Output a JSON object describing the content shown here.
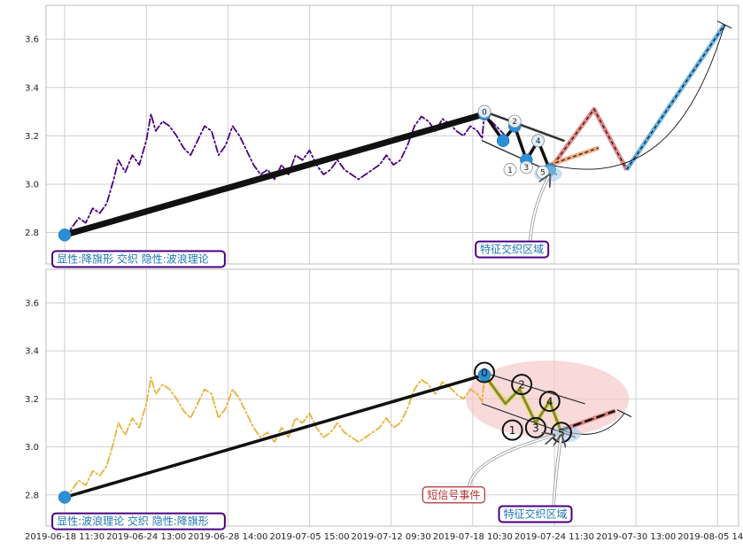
{
  "chart_data": [
    {
      "type": "line",
      "panel": "top",
      "y_ticks": [
        "2.8",
        "3.0",
        "3.2",
        "3.4",
        "3.6"
      ],
      "ylim": [
        2.67,
        3.74
      ],
      "grid": true,
      "series": [
        {
          "role": "price",
          "color": "#4b0082",
          "style": "dashdot",
          "points": [
            [
              0.0,
              2.78
            ],
            [
              0.3,
              2.82
            ],
            [
              0.6,
              2.86
            ],
            [
              0.9,
              2.84
            ],
            [
              1.2,
              2.9
            ],
            [
              1.5,
              2.88
            ],
            [
              1.8,
              2.92
            ],
            [
              2.1,
              3.02
            ],
            [
              2.3,
              3.1
            ],
            [
              2.6,
              3.05
            ],
            [
              2.9,
              3.12
            ],
            [
              3.2,
              3.08
            ],
            [
              3.5,
              3.18
            ],
            [
              3.7,
              3.29
            ],
            [
              3.9,
              3.22
            ],
            [
              4.2,
              3.26
            ],
            [
              4.5,
              3.24
            ],
            [
              4.8,
              3.2
            ],
            [
              5.1,
              3.15
            ],
            [
              5.4,
              3.12
            ],
            [
              5.7,
              3.18
            ],
            [
              6.0,
              3.24
            ],
            [
              6.3,
              3.22
            ],
            [
              6.6,
              3.12
            ],
            [
              6.9,
              3.16
            ],
            [
              7.2,
              3.24
            ],
            [
              7.5,
              3.2
            ],
            [
              7.8,
              3.14
            ],
            [
              8.1,
              3.08
            ],
            [
              8.4,
              3.04
            ],
            [
              8.7,
              3.06
            ],
            [
              9.0,
              3.02
            ],
            [
              9.3,
              3.08
            ],
            [
              9.6,
              3.04
            ],
            [
              9.9,
              3.12
            ],
            [
              10.2,
              3.1
            ],
            [
              10.5,
              3.14
            ],
            [
              10.8,
              3.08
            ],
            [
              11.1,
              3.04
            ],
            [
              11.4,
              3.06
            ],
            [
              11.7,
              3.1
            ],
            [
              12.0,
              3.06
            ],
            [
              12.3,
              3.04
            ],
            [
              12.6,
              3.02
            ],
            [
              12.9,
              3.04
            ],
            [
              13.2,
              3.06
            ],
            [
              13.5,
              3.08
            ],
            [
              13.8,
              3.12
            ],
            [
              14.1,
              3.08
            ],
            [
              14.4,
              3.1
            ],
            [
              14.7,
              3.16
            ],
            [
              15.0,
              3.24
            ],
            [
              15.3,
              3.28
            ],
            [
              15.6,
              3.26
            ],
            [
              15.9,
              3.22
            ],
            [
              16.2,
              3.27
            ],
            [
              16.5,
              3.25
            ],
            [
              16.8,
              3.22
            ],
            [
              17.1,
              3.2
            ],
            [
              17.4,
              3.24
            ],
            [
              17.7,
              3.22
            ],
            [
              17.9,
              3.19
            ],
            [
              18.0,
              3.29
            ],
            [
              18.3,
              3.26
            ],
            [
              18.6,
              3.23
            ],
            [
              18.9,
              3.2
            ]
          ]
        },
        {
          "role": "flag-pole",
          "color": "#111111",
          "width": 7,
          "points": [
            [
              0.0,
              2.79
            ],
            [
              18.0,
              3.29
            ]
          ]
        },
        {
          "role": "wave",
          "color": "#111111",
          "width": 3.5,
          "points": [
            [
              18.0,
              3.29
            ],
            [
              18.8,
              3.18
            ],
            [
              19.3,
              3.24
            ],
            [
              19.8,
              3.1
            ],
            [
              20.3,
              3.18
            ],
            [
              20.8,
              3.06
            ]
          ]
        },
        {
          "role": "flag-channel-upper",
          "color": "#333333",
          "width": 2.5,
          "points": [
            [
              18.3,
              3.29
            ],
            [
              21.4,
              3.18
            ]
          ]
        },
        {
          "role": "flag-channel-lower",
          "color": "#333333",
          "width": 1.5,
          "points": [
            [
              17.9,
              3.18
            ],
            [
              21.1,
              3.04
            ]
          ]
        },
        {
          "role": "projection-red",
          "color": "#e07a7a",
          "points": [
            [
              20.8,
              3.06
            ],
            [
              22.7,
              3.31
            ],
            [
              24.1,
              3.06
            ]
          ]
        },
        {
          "role": "projection-orange",
          "color": "#f0a070",
          "points": [
            [
              20.8,
              3.08
            ],
            [
              22.9,
              3.15
            ]
          ]
        },
        {
          "role": "projection-blue",
          "color": "#5aa8e0",
          "points": [
            [
              24.1,
              3.06
            ],
            [
              28.3,
              3.66
            ]
          ]
        },
        {
          "role": "arc",
          "color": "#111111",
          "points": [
            [
              20.8,
              3.08
            ],
            [
              24.5,
              3.0
            ],
            [
              26.8,
              3.18
            ],
            [
              28.3,
              3.66
            ]
          ]
        }
      ],
      "markers": [
        {
          "x": 0.0,
          "y": 2.79
        },
        {
          "x": 18.0,
          "y": 3.29
        },
        {
          "x": 18.8,
          "y": 3.18
        },
        {
          "x": 19.3,
          "y": 3.24
        },
        {
          "x": 19.8,
          "y": 3.1
        },
        {
          "x": 20.3,
          "y": 3.18
        },
        {
          "x": 20.8,
          "y": 3.06
        }
      ],
      "wave_labels": [
        {
          "text": "0",
          "x": 18.0,
          "y": 3.3
        },
        {
          "text": "1",
          "x": 19.1,
          "y": 3.06
        },
        {
          "text": "2",
          "x": 19.3,
          "y": 3.26
        },
        {
          "text": "3",
          "x": 19.8,
          "y": 3.07
        },
        {
          "text": "4",
          "x": 20.3,
          "y": 3.18
        },
        {
          "text": "5",
          "x": 20.5,
          "y": 3.05
        }
      ],
      "annotations": [
        {
          "text": "显性:降旗形 交织 隐性:波浪理论",
          "anchor_x": 0.0,
          "anchor_y": 2.69,
          "style": "purple-box"
        },
        {
          "text": "特征交织区域",
          "anchor_x": 18.5,
          "anchor_y": 2.73,
          "target_x": 20.8,
          "target_y": 3.06,
          "style": "purple-box"
        }
      ]
    },
    {
      "type": "line",
      "panel": "bottom",
      "y_ticks": [
        "2.8",
        "3.0",
        "3.2",
        "3.4",
        "3.6"
      ],
      "ylim": [
        2.67,
        3.74
      ],
      "x_tick_labels": [
        "2019-06-18 11:30",
        "2019-06-24 13:00",
        "2019-06-28 14:00",
        "2019-07-05 15:00",
        "2019-07-12 09:30",
        "2019-07-18 10:30",
        "2019-07-24 11:30",
        "2019-07-30 13:00",
        "2019-08-05 14:00"
      ],
      "grid": true,
      "series": [
        {
          "role": "price",
          "color": "#e8b23a",
          "style": "dashdot",
          "points": [
            [
              0.0,
              2.78
            ],
            [
              0.3,
              2.82
            ],
            [
              0.6,
              2.86
            ],
            [
              0.9,
              2.84
            ],
            [
              1.2,
              2.9
            ],
            [
              1.5,
              2.88
            ],
            [
              1.8,
              2.92
            ],
            [
              2.1,
              3.02
            ],
            [
              2.3,
              3.1
            ],
            [
              2.6,
              3.05
            ],
            [
              2.9,
              3.12
            ],
            [
              3.2,
              3.08
            ],
            [
              3.5,
              3.18
            ],
            [
              3.7,
              3.29
            ],
            [
              3.9,
              3.22
            ],
            [
              4.2,
              3.26
            ],
            [
              4.5,
              3.24
            ],
            [
              4.8,
              3.2
            ],
            [
              5.1,
              3.15
            ],
            [
              5.4,
              3.12
            ],
            [
              5.7,
              3.18
            ],
            [
              6.0,
              3.24
            ],
            [
              6.3,
              3.22
            ],
            [
              6.6,
              3.12
            ],
            [
              6.9,
              3.16
            ],
            [
              7.2,
              3.24
            ],
            [
              7.5,
              3.2
            ],
            [
              7.8,
              3.14
            ],
            [
              8.1,
              3.08
            ],
            [
              8.4,
              3.04
            ],
            [
              8.7,
              3.06
            ],
            [
              9.0,
              3.02
            ],
            [
              9.3,
              3.08
            ],
            [
              9.6,
              3.04
            ],
            [
              9.9,
              3.12
            ],
            [
              10.2,
              3.1
            ],
            [
              10.5,
              3.14
            ],
            [
              10.8,
              3.08
            ],
            [
              11.1,
              3.04
            ],
            [
              11.4,
              3.06
            ],
            [
              11.7,
              3.1
            ],
            [
              12.0,
              3.06
            ],
            [
              12.3,
              3.04
            ],
            [
              12.6,
              3.02
            ],
            [
              12.9,
              3.04
            ],
            [
              13.2,
              3.06
            ],
            [
              13.5,
              3.08
            ],
            [
              13.8,
              3.12
            ],
            [
              14.1,
              3.08
            ],
            [
              14.4,
              3.1
            ],
            [
              14.7,
              3.16
            ],
            [
              15.0,
              3.24
            ],
            [
              15.3,
              3.28
            ],
            [
              15.6,
              3.26
            ],
            [
              15.9,
              3.22
            ],
            [
              16.2,
              3.27
            ],
            [
              16.5,
              3.25
            ],
            [
              16.8,
              3.22
            ],
            [
              17.1,
              3.2
            ],
            [
              17.4,
              3.24
            ],
            [
              17.7,
              3.22
            ],
            [
              17.9,
              3.19
            ],
            [
              18.0,
              3.29
            ],
            [
              18.3,
              3.26
            ],
            [
              18.6,
              3.23
            ],
            [
              18.9,
              3.2
            ]
          ]
        },
        {
          "role": "flag-pole",
          "color": "#111111",
          "width": 3.5,
          "points": [
            [
              0.0,
              2.79
            ],
            [
              18.0,
              3.3
            ]
          ]
        },
        {
          "role": "wave",
          "color": "#8a8a2a",
          "width": 3,
          "points": [
            [
              18.0,
              3.3
            ],
            [
              18.9,
              3.18
            ],
            [
              19.5,
              3.24
            ],
            [
              20.2,
              3.1
            ],
            [
              20.8,
              3.19
            ],
            [
              21.3,
              3.06
            ]
          ]
        },
        {
          "role": "flag-channel-upper",
          "color": "#333333",
          "width": 1.2,
          "points": [
            [
              18.3,
              3.3
            ],
            [
              22.3,
              3.18
            ]
          ]
        },
        {
          "role": "flag-channel-lower",
          "color": "#333333",
          "width": 1.2,
          "points": [
            [
              17.9,
              3.18
            ],
            [
              21.9,
              3.04
            ]
          ]
        },
        {
          "role": "projection-red",
          "color": "#e07a7a",
          "points": [
            [
              21.3,
              3.07
            ],
            [
              23.6,
              3.15
            ]
          ]
        },
        {
          "role": "arc",
          "color": "#111111",
          "points": [
            [
              21.3,
              3.07
            ],
            [
              22.5,
              3.03
            ],
            [
              23.4,
              3.06
            ],
            [
              24.0,
              3.14
            ]
          ]
        }
      ],
      "markers": [
        {
          "x": 0.0,
          "y": 2.79
        },
        {
          "x": 18.0,
          "y": 3.3
        }
      ],
      "highlight_ellipse": {
        "cx": 20.7,
        "cy": 3.2,
        "rx": 3.5,
        "ry": 0.16,
        "color": "#f4c6c6"
      },
      "wave_labels": [
        {
          "text": "0",
          "x": 18.0,
          "y": 3.31
        },
        {
          "text": "1",
          "x": 19.2,
          "y": 3.07
        },
        {
          "text": "2",
          "x": 19.6,
          "y": 3.26
        },
        {
          "text": "3",
          "x": 20.2,
          "y": 3.08
        },
        {
          "text": "4",
          "x": 20.8,
          "y": 3.19
        },
        {
          "text": "5",
          "x": 21.3,
          "y": 3.06
        }
      ],
      "annotations": [
        {
          "text": "显性:波浪理论 交织 隐性:降旗形",
          "anchor_x": 0.0,
          "anchor_y": 2.69,
          "style": "purple-box"
        },
        {
          "text": "短信号事件",
          "anchor_x": 16.0,
          "anchor_y": 2.8,
          "target_x": 21.0,
          "target_y": 3.07,
          "style": "red-box"
        },
        {
          "text": "特征交织区域",
          "anchor_x": 19.5,
          "anchor_y": 2.72,
          "target_x": 21.3,
          "target_y": 3.07,
          "style": "purple-box"
        }
      ]
    }
  ]
}
